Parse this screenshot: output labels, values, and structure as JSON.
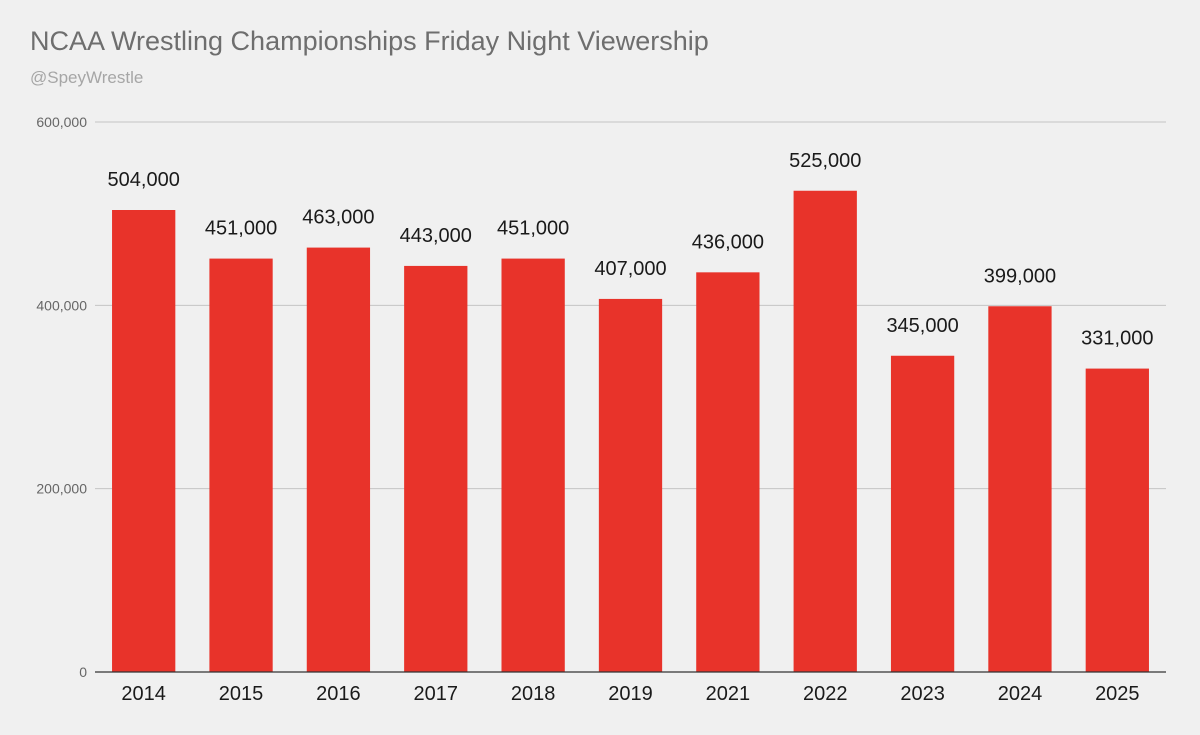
{
  "chart_data": {
    "type": "bar",
    "title": "NCAA Wrestling Championships Friday Night Viewership",
    "subtitle": "@SpeyWrestle",
    "categories": [
      "2014",
      "2015",
      "2016",
      "2017",
      "2018",
      "2019",
      "2021",
      "2022",
      "2023",
      "2024",
      "2025"
    ],
    "values": [
      504000,
      451000,
      463000,
      443000,
      451000,
      407000,
      436000,
      525000,
      345000,
      399000,
      331000
    ],
    "data_labels": [
      "504,000",
      "451,000",
      "463,000",
      "443,000",
      "451,000",
      "407,000",
      "436,000",
      "525,000",
      "345,000",
      "399,000",
      "331,000"
    ],
    "y_ticks": [
      0,
      200000,
      400000,
      600000
    ],
    "y_tick_labels": [
      "0",
      "200,000",
      "400,000",
      "600,000"
    ],
    "ylim": [
      0,
      600000
    ],
    "xlabel": "",
    "ylabel": "",
    "grid": true,
    "bar_color": "#e8332a",
    "legend": "none"
  }
}
